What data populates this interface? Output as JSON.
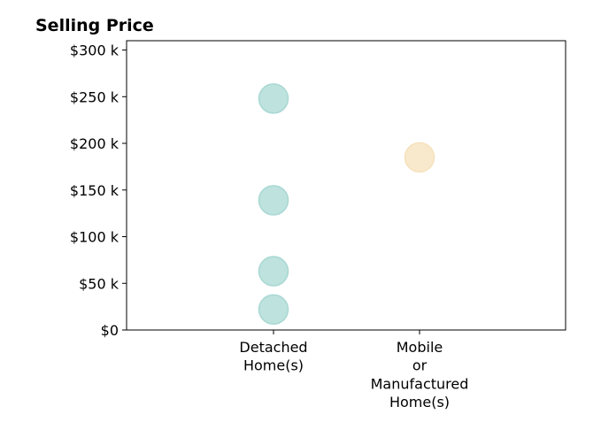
{
  "chart_data": {
    "type": "scatter",
    "title": "Selling Price",
    "xlabel": "",
    "ylabel": "",
    "categories": [
      [
        "Detached",
        "Home(s)"
      ],
      [
        "Mobile",
        "or",
        "Manufactured",
        "Home(s)"
      ]
    ],
    "ylim": [
      0,
      310000
    ],
    "yticks": [
      {
        "value": 0,
        "label": "$0"
      },
      {
        "value": 50000,
        "label": "$50 k"
      },
      {
        "value": 100000,
        "label": "$100 k"
      },
      {
        "value": 150000,
        "label": "$150 k"
      },
      {
        "value": 200000,
        "label": "$200 k"
      },
      {
        "value": 250000,
        "label": "$250 k"
      },
      {
        "value": 300000,
        "label": "$300 k"
      }
    ],
    "grid": false,
    "legend": "none",
    "series": [
      {
        "category": 0,
        "values": [
          22000,
          63000,
          139000,
          248000
        ],
        "color": "#a8d8d3"
      },
      {
        "category": 1,
        "values": [
          185000
        ],
        "color": "#f6e1bb"
      }
    ]
  }
}
